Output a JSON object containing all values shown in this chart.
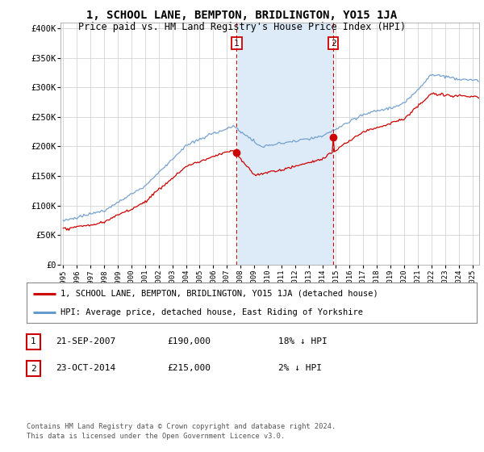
{
  "title": "1, SCHOOL LANE, BEMPTON, BRIDLINGTON, YO15 1JA",
  "subtitle": "Price paid vs. HM Land Registry's House Price Index (HPI)",
  "title_fontsize": 10,
  "subtitle_fontsize": 8.5,
  "ylabel_ticks": [
    "£0",
    "£50K",
    "£100K",
    "£150K",
    "£200K",
    "£250K",
    "£300K",
    "£350K",
    "£400K"
  ],
  "ytick_values": [
    0,
    50000,
    100000,
    150000,
    200000,
    250000,
    300000,
    350000,
    400000
  ],
  "ylim": [
    0,
    410000
  ],
  "xlim_start": 1994.8,
  "xlim_end": 2025.5,
  "grid_color": "#cccccc",
  "background_color": "#ffffff",
  "plot_bg_color": "#ffffff",
  "shade_color": "#ddeaf8",
  "hpi_color": "#6699cc",
  "price_color": "#cc0000",
  "transaction1_date": 2007.72,
  "transaction1_price": 190000,
  "transaction1_label": "1",
  "transaction2_date": 2014.81,
  "transaction2_price": 215000,
  "transaction2_label": "2",
  "shade_start": 2007.72,
  "shade_end": 2014.81,
  "legend_label1": "1, SCHOOL LANE, BEMPTON, BRIDLINGTON, YO15 1JA (detached house)",
  "legend_label2": "HPI: Average price, detached house, East Riding of Yorkshire",
  "footnote1": "Contains HM Land Registry data © Crown copyright and database right 2024.",
  "footnote2": "This data is licensed under the Open Government Licence v3.0.",
  "table_rows": [
    {
      "num": "1",
      "date": "21-SEP-2007",
      "price": "£190,000",
      "rel": "18% ↓ HPI"
    },
    {
      "num": "2",
      "date": "23-OCT-2014",
      "price": "£215,000",
      "rel": "2% ↓ HPI"
    }
  ]
}
